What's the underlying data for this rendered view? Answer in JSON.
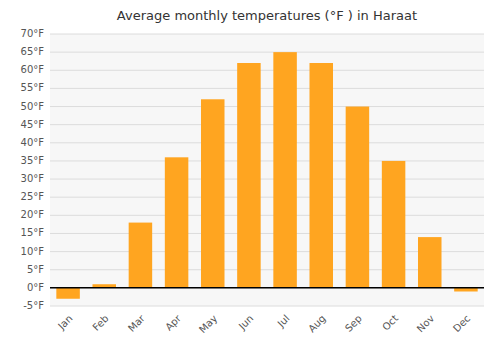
{
  "chart_data": {
    "type": "bar",
    "title": "Average monthly temperatures (°F ) in Haraat",
    "categories": [
      "Jan",
      "Feb",
      "Mar",
      "Apr",
      "May",
      "Jun",
      "Jul",
      "Aug",
      "Sep",
      "Oct",
      "Nov",
      "Dec"
    ],
    "values": [
      -3,
      1,
      18,
      36,
      52,
      62,
      65,
      62,
      50,
      35,
      14,
      -1
    ],
    "color": "#FFA520",
    "ylim": [
      -5,
      70
    ],
    "yticks": [
      {
        "value": -5,
        "label": "-5°F"
      },
      {
        "value": 0,
        "label": "0°F"
      },
      {
        "value": 5,
        "label": "5°F"
      },
      {
        "value": 10,
        "label": "10°F"
      },
      {
        "value": 15,
        "label": "15°F"
      },
      {
        "value": 20,
        "label": "20°F"
      },
      {
        "value": 25,
        "label": "25°F"
      },
      {
        "value": 30,
        "label": "30°F"
      },
      {
        "value": 35,
        "label": "35°F"
      },
      {
        "value": 40,
        "label": "40°F"
      },
      {
        "value": 45,
        "label": "45°F"
      },
      {
        "value": 50,
        "label": "50°F"
      },
      {
        "value": 55,
        "label": "55°F"
      },
      {
        "value": 60,
        "label": "60°F"
      },
      {
        "value": 65,
        "label": "65°F"
      },
      {
        "value": 70,
        "label": "70°F"
      }
    ],
    "grid": true
  }
}
